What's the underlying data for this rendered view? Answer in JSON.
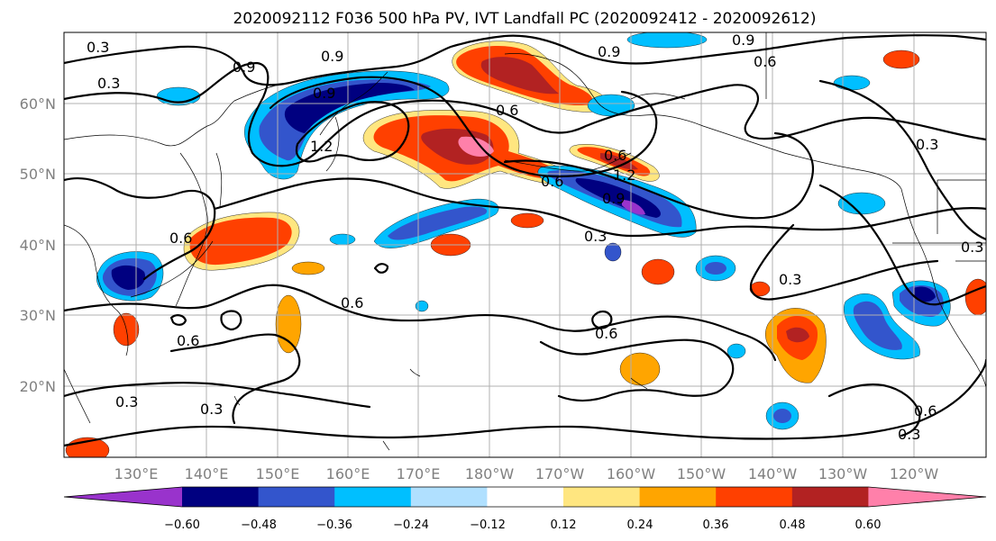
{
  "map": {
    "title": "2020092112 F036 500 hPa PV, IVT Landfall PC (2020092412 - 2020092612)",
    "lat_labels": [
      "60°N",
      "50°N",
      "40°N",
      "30°N",
      "20°N"
    ],
    "lon_labels": [
      "130°E",
      "140°E",
      "150°E",
      "160°E",
      "170°E",
      "180°W",
      "170°W",
      "160°W",
      "150°W",
      "140°W",
      "130°W",
      "120°W"
    ],
    "contour_labels": [
      "0.3",
      "0.3",
      "0.9",
      "0.9",
      "0.9",
      "0.9",
      "0.6",
      "0.6",
      "0.9",
      "1.2",
      "0.6",
      "0.6",
      "0.9",
      "0.3",
      "0.6",
      "0.6",
      "0.3",
      "0.6",
      "0.6",
      "0.3",
      "0.3",
      "0.3",
      "0.3",
      "0.6",
      "0.3",
      "1.2"
    ],
    "colorbar": {
      "colors": [
        "#9933cc",
        "#000080",
        "#3355cc",
        "#00bfff",
        "#b0e0ff",
        "#ffffff",
        "#ffe680",
        "#ffa500",
        "#ff4000",
        "#b22222",
        "#ff80aa"
      ],
      "tick_labels": [
        "−0.60",
        "−0.48",
        "−0.36",
        "−0.24",
        "−0.12",
        "0.12",
        "0.24",
        "0.36",
        "0.48",
        "0.60"
      ]
    }
  }
}
